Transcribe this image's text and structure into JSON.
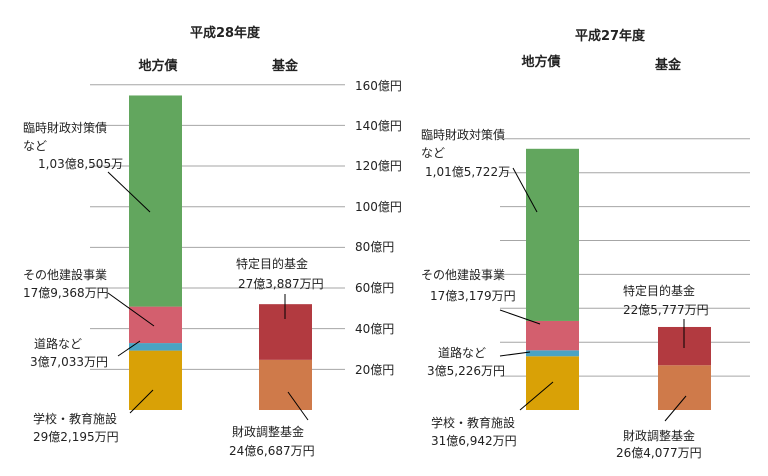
{
  "chart_data": [
    {
      "type": "bar",
      "title": "平成28年度",
      "categories": [
        "地方債",
        "基金"
      ],
      "ylim": [
        0,
        160
      ],
      "ytick_labels": [
        "20億円",
        "40億円",
        "60億円",
        "80億円",
        "100億円",
        "120億円",
        "140億円",
        "160億円"
      ],
      "series": [
        {
          "category": "地方債",
          "label": "学校・教育施設",
          "amount": "29億2,195万円",
          "value": 29.2195,
          "color": "#d9a106"
        },
        {
          "category": "地方債",
          "label": "道路など",
          "amount": "3億7,033万円",
          "value": 3.7033,
          "color": "#4aa3c3"
        },
        {
          "category": "地方債",
          "label": "その他建設事業",
          "amount": "17億9,368万円",
          "value": 17.9368,
          "color": "#d35f6e"
        },
        {
          "category": "地方債",
          "label": "臨時財政対策債など",
          "amount": "1,03億8,505万",
          "value": 103.8505,
          "color": "#62a65e"
        },
        {
          "category": "基金",
          "label": "財政調整基金",
          "amount": "24億6,687万円",
          "value": 24.6687,
          "color": "#cf7a4a"
        },
        {
          "category": "基金",
          "label": "特定目的基金",
          "amount": "27億3,887万円",
          "value": 27.3887,
          "color": "#b23a40"
        }
      ]
    },
    {
      "type": "bar",
      "title": "平成27年度",
      "categories": [
        "地方債",
        "基金"
      ],
      "ylim": [
        0,
        160
      ],
      "series": [
        {
          "category": "地方債",
          "label": "学校・教育施設",
          "amount": "31億6,942万円",
          "value": 31.6942,
          "color": "#d9a106"
        },
        {
          "category": "地方債",
          "label": "道路など",
          "amount": "3億5,226万円",
          "value": 3.5226,
          "color": "#4aa3c3"
        },
        {
          "category": "地方債",
          "label": "その他建設事業",
          "amount": "17億3,179万円",
          "value": 17.3179,
          "color": "#d35f6e"
        },
        {
          "category": "地方債",
          "label": "臨時財政対策債など",
          "amount": "1,01億5,722万",
          "value": 101.5722,
          "color": "#62a65e"
        },
        {
          "category": "基金",
          "label": "財政調整基金",
          "amount": "26億4,077万円",
          "value": 26.4077,
          "color": "#cf7a4a"
        },
        {
          "category": "基金",
          "label": "特定目的基金",
          "amount": "22億5,777万円",
          "value": 22.5777,
          "color": "#b23a40"
        }
      ]
    }
  ]
}
